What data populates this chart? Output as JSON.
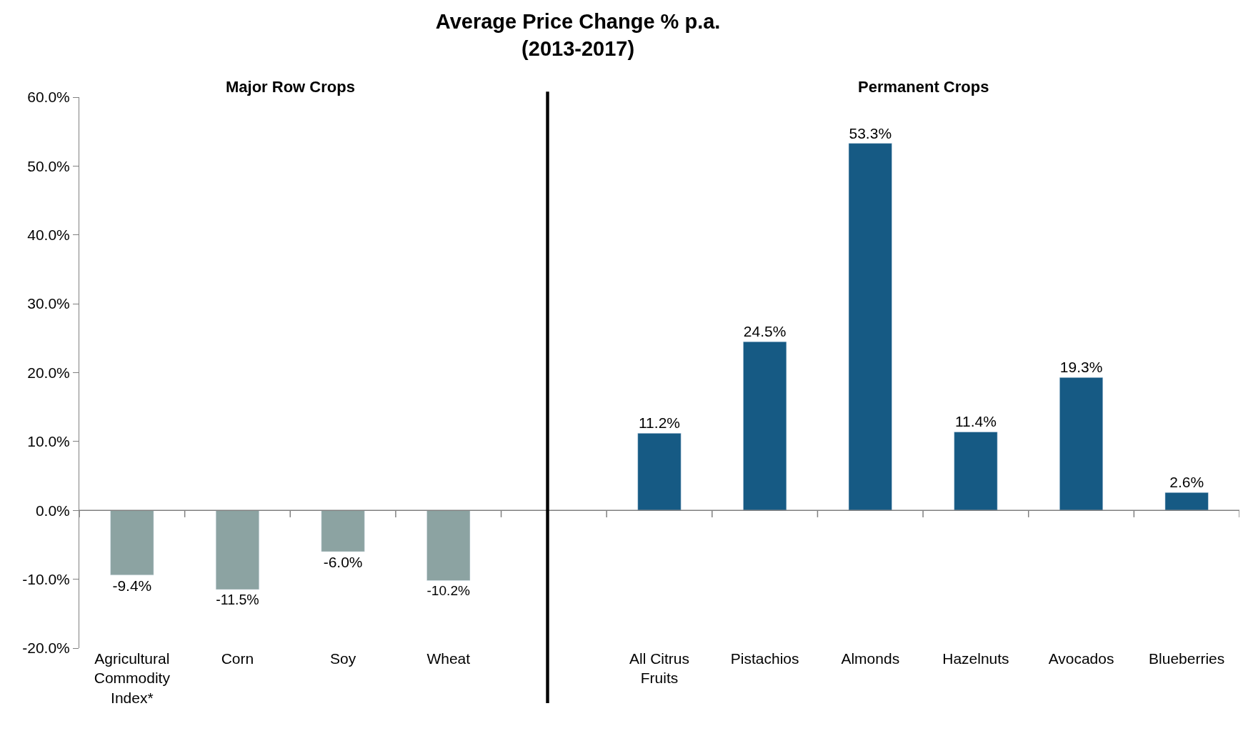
{
  "chart_data": {
    "type": "bar",
    "title": "Average Price Change % p.a.\n(2013-2017)",
    "categories": [
      "Agricultural Commodity Index*",
      "Corn",
      "Soy",
      "Wheat",
      null,
      "All Citrus Fruits",
      "Pistachios",
      "Almonds",
      "Hazelnuts",
      "Avocados",
      "Blueberries"
    ],
    "values": [
      -9.4,
      -11.5,
      -6.0,
      -10.2,
      null,
      11.2,
      24.5,
      53.3,
      11.4,
      19.3,
      2.6
    ],
    "colors": [
      "#8ca3a2",
      "#8ca3a2",
      "#8ca3a2",
      "#8ca3a2",
      null,
      "#165a84",
      "#165a84",
      "#165a84",
      "#165a84",
      "#165a84",
      "#165a84"
    ],
    "value_labels": [
      "-9.4%",
      "-11.5%",
      "-6.0%",
      "-10.2%",
      null,
      "11.2%",
      "24.5%",
      "53.3%",
      "11.4%",
      "19.3%",
      "2.6%"
    ],
    "ylim": [
      -20,
      60
    ],
    "yticks": [
      {
        "value": -20,
        "label": "-20.0%"
      },
      {
        "value": -10,
        "label": "-10.0%"
      },
      {
        "value": 0,
        "label": "0.0%"
      },
      {
        "value": 10,
        "label": "10.0%"
      },
      {
        "value": 20,
        "label": "20.0%"
      },
      {
        "value": 30,
        "label": "30.0%"
      },
      {
        "value": 40,
        "label": "40.0%"
      },
      {
        "value": 50,
        "label": "50.0%"
      },
      {
        "value": 60,
        "label": "60.0%"
      }
    ],
    "annotations": [
      "Major Row Crops",
      "Permanent Crops"
    ],
    "legend": false
  }
}
